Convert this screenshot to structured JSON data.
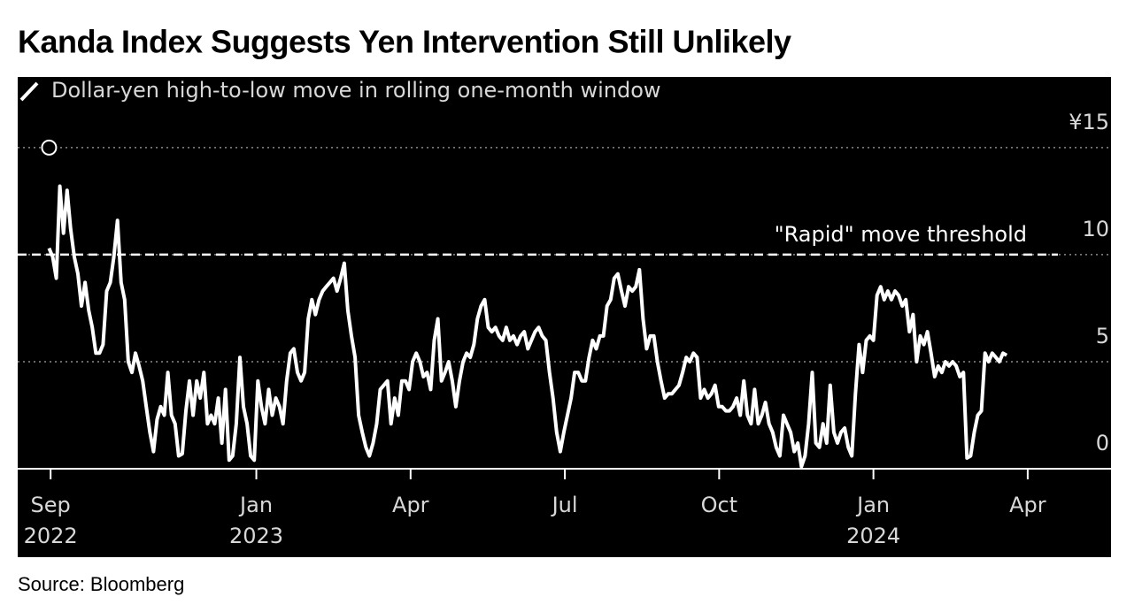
{
  "chart_data": {
    "type": "line",
    "title": "Kanda Index Suggests Yen Intervention Still Unlikely",
    "source": "Source: Bloomberg",
    "x": [
      -0.03,
      0.04,
      0.11,
      0.18,
      0.25,
      0.32,
      0.39,
      0.46,
      0.53,
      0.6,
      0.67,
      0.74,
      0.81,
      0.88,
      0.95,
      1.02,
      1.09,
      1.16,
      1.23,
      1.3,
      1.37,
      1.44,
      1.51,
      1.58,
      1.65,
      1.72,
      1.79,
      1.86,
      1.93,
      2,
      2.07,
      2.14,
      2.21,
      2.28,
      2.35,
      2.42,
      2.49,
      2.56,
      2.63,
      2.7,
      2.77,
      2.84,
      2.91,
      2.98,
      3.05,
      3.12,
      3.19,
      3.26,
      3.33,
      3.4,
      3.47,
      3.54,
      3.61,
      3.68,
      3.75,
      3.82,
      3.89,
      3.96,
      4.03,
      4.1,
      4.17,
      4.24,
      4.31,
      4.38,
      4.45,
      4.52,
      4.59,
      4.66,
      4.73,
      4.8,
      4.87,
      4.94,
      5.01,
      5.08,
      5.15,
      5.22,
      5.29,
      5.36,
      5.43,
      5.5,
      5.57,
      5.64,
      5.71,
      5.78,
      5.85,
      5.92,
      5.99,
      6.06,
      6.13,
      6.2,
      6.27,
      6.34,
      6.41,
      6.48,
      6.55,
      6.62,
      6.69,
      6.76,
      6.83,
      6.9,
      6.97,
      7.04,
      7.11,
      7.18,
      7.25,
      7.32,
      7.39,
      7.46,
      7.53,
      7.6,
      7.67,
      7.74,
      7.81,
      7.88,
      7.95,
      8.02,
      8.09,
      8.16,
      8.23,
      8.3,
      8.37,
      8.44,
      8.51,
      8.58,
      8.65,
      8.72,
      8.79,
      8.86,
      8.93,
      9,
      9.07,
      9.14,
      9.21,
      9.28,
      9.35,
      9.42,
      9.49,
      9.56,
      9.63,
      9.7,
      9.77,
      9.84,
      9.91,
      9.98,
      10.05,
      10.12,
      10.19,
      10.26,
      10.33,
      10.4,
      10.47,
      10.54,
      10.61,
      10.68,
      10.75,
      10.82,
      10.89,
      10.96,
      11.03,
      11.1,
      11.17,
      11.24,
      11.31,
      11.38,
      11.45,
      11.52,
      11.59,
      11.66,
      11.73,
      11.8,
      11.87,
      11.94,
      12.01,
      12.08,
      12.15,
      12.22,
      12.29,
      12.36,
      12.43,
      12.5,
      12.57,
      12.64,
      12.71,
      12.78,
      12.85,
      12.92,
      12.99,
      13.06,
      13.13,
      13.2,
      13.27,
      13.34,
      13.41,
      13.48,
      13.55,
      13.62,
      13.69,
      13.76,
      13.83,
      13.9,
      13.97,
      14.04,
      14.11,
      14.18,
      14.25,
      14.32,
      14.39,
      14.46,
      14.53,
      14.6,
      14.67,
      14.74,
      14.81,
      14.88,
      14.95,
      15.02,
      15.09,
      15.16,
      15.23,
      15.3,
      15.37,
      15.44,
      15.51,
      15.58,
      15.65,
      15.72,
      15.79,
      15.86,
      15.93,
      16,
      16.07,
      16.14,
      16.21,
      16.28,
      16.35,
      16.42,
      16.49,
      16.56,
      16.63,
      16.7,
      16.77,
      16.84,
      16.91,
      16.98,
      17.05,
      17.12,
      17.19,
      17.26,
      17.33,
      17.4,
      17.47,
      17.54,
      17.61,
      17.68,
      17.75,
      17.82,
      17.89,
      17.96,
      18.03,
      18.1,
      18.17,
      18.24,
      18.31,
      18.38,
      18.45,
      18.52,
      18.59
    ],
    "series": [
      {
        "name": "Dollar-yen high-to-low move in rolling one-month window",
        "color": "#ffffff",
        "values": [
          10.3,
          9.9,
          8.9,
          13.2,
          11.0,
          13.0,
          11.2,
          9.9,
          9.1,
          7.6,
          8.7,
          7.4,
          6.6,
          5.4,
          5.4,
          5.8,
          8.3,
          8.7,
          9.9,
          11.6,
          8.7,
          7.9,
          5.0,
          4.5,
          5.4,
          4.8,
          4.1,
          2.9,
          1.7,
          0.8,
          2.3,
          2.9,
          2.5,
          4.5,
          2.5,
          2.1,
          0.6,
          0.7,
          2.7,
          4.1,
          2.5,
          4.1,
          3.3,
          4.5,
          2.1,
          2.5,
          2.1,
          3.3,
          1.2,
          3.7,
          0.4,
          0.6,
          2.1,
          5.2,
          2.9,
          2.1,
          0.6,
          0.4,
          4.1,
          2.9,
          2.1,
          3.7,
          2.5,
          3.3,
          2.9,
          2.1,
          4.1,
          5.4,
          5.6,
          4.5,
          4.1,
          4.5,
          7.0,
          7.9,
          7.2,
          7.9,
          8.3,
          8.5,
          8.7,
          8.9,
          8.3,
          8.9,
          9.6,
          7.4,
          6.2,
          5.2,
          2.5,
          1.7,
          1.0,
          0.6,
          1.2,
          2.1,
          3.7,
          3.9,
          4.1,
          2.1,
          3.3,
          2.5,
          4.1,
          4.1,
          3.7,
          5.0,
          5.4,
          5.0,
          4.3,
          4.5,
          3.7,
          6.0,
          7.0,
          4.1,
          4.5,
          5.0,
          4.1,
          2.9,
          4.1,
          5.0,
          5.4,
          5.2,
          5.8,
          7.0,
          7.6,
          7.9,
          6.6,
          6.4,
          6.6,
          6.2,
          6.0,
          6.6,
          6.0,
          6.2,
          5.8,
          6.2,
          6.4,
          5.6,
          6.0,
          6.4,
          6.6,
          6.2,
          6.0,
          4.5,
          3.3,
          1.7,
          0.8,
          1.7,
          2.5,
          3.3,
          4.5,
          4.5,
          4.1,
          4.1,
          5.2,
          6.0,
          5.6,
          6.2,
          6.2,
          7.6,
          7.9,
          8.9,
          9.1,
          8.3,
          7.6,
          8.5,
          8.3,
          8.5,
          9.3,
          7.0,
          5.6,
          6.2,
          6.2,
          5.0,
          4.1,
          3.3,
          3.5,
          3.5,
          3.7,
          3.9,
          4.5,
          5.2,
          5.0,
          5.4,
          5.2,
          3.3,
          3.7,
          3.3,
          3.5,
          3.9,
          2.9,
          2.9,
          2.7,
          2.7,
          2.9,
          3.3,
          2.5,
          4.1,
          2.5,
          2.1,
          3.7,
          2.1,
          2.5,
          3.1,
          2.1,
          1.7,
          1.0,
          0.6,
          2.5,
          2.1,
          1.7,
          0.8,
          1.2,
          0.1,
          0.6,
          2.1,
          4.5,
          1.2,
          1.0,
          2.1,
          1.2,
          3.9,
          1.7,
          1.2,
          1.7,
          1.9,
          1.0,
          0.6,
          3.5,
          5.8,
          4.5,
          6.0,
          6.2,
          6.0,
          8.1,
          8.5,
          7.9,
          8.3,
          7.9,
          8.3,
          8.1,
          7.6,
          7.9,
          6.4,
          7.2,
          5.0,
          6.2,
          5.8,
          6.4,
          5.4,
          4.3,
          4.8,
          4.5,
          5.0,
          4.8,
          5.0,
          4.8,
          4.3,
          4.5,
          0.5,
          0.6,
          1.7,
          2.5,
          2.7,
          5.4,
          5.0,
          5.4,
          5.2,
          5.0,
          5.4,
          5.3
        ]
      }
    ],
    "xlim": [
      -0.64,
      20.62
    ],
    "xticks": [
      {
        "value": 0,
        "label": "Sep",
        "year": "2022"
      },
      {
        "value": 4,
        "label": "Jan",
        "year": "2023"
      },
      {
        "value": 7,
        "label": "Apr"
      },
      {
        "value": 10,
        "label": "Jul"
      },
      {
        "value": 13,
        "label": "Oct"
      },
      {
        "value": 16,
        "label": "Jan",
        "year": "2024"
      },
      {
        "value": 19,
        "label": "Apr"
      }
    ],
    "ylim": [
      0,
      18.3
    ],
    "yticks": [
      0,
      5,
      10,
      {
        "value": 15,
        "label": "¥15"
      }
    ],
    "grid": true,
    "threshold": {
      "value": 10,
      "label": "\"Rapid\" move threshold"
    },
    "marker": {
      "x": -0.03,
      "value": 15
    }
  }
}
